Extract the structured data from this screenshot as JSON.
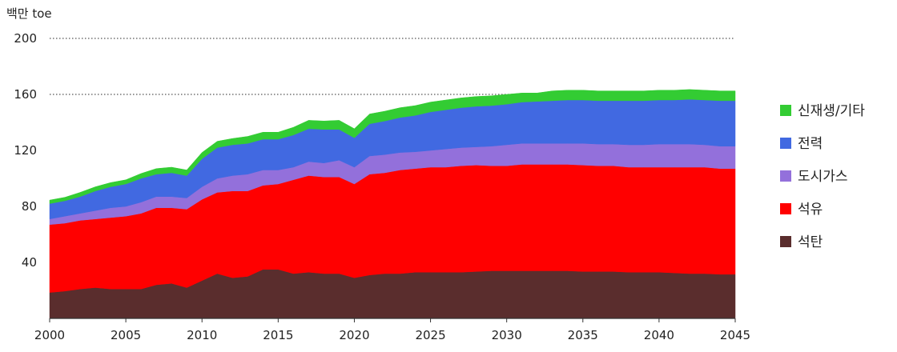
{
  "chart_data": {
    "type": "area",
    "stacked": true,
    "unit_label": "백만 toe",
    "x": [
      2000,
      2001,
      2002,
      2003,
      2004,
      2005,
      2006,
      2007,
      2008,
      2009,
      2010,
      2011,
      2012,
      2013,
      2014,
      2015,
      2016,
      2017,
      2018,
      2019,
      2020,
      2021,
      2022,
      2023,
      2024,
      2025,
      2026,
      2027,
      2028,
      2029,
      2030,
      2031,
      2032,
      2033,
      2034,
      2035,
      2036,
      2037,
      2038,
      2039,
      2040,
      2041,
      2042,
      2043,
      2044,
      2045
    ],
    "x_ticks": [
      "2000",
      "2005",
      "2010",
      "2015",
      "2020",
      "2025",
      "2030",
      "2035",
      "2040",
      "2045"
    ],
    "y_ticks": [
      "40",
      "80",
      "120",
      "160",
      "200"
    ],
    "ylim": [
      0,
      200
    ],
    "xlim": [
      2000,
      2045
    ],
    "gridlines": [
      160,
      200
    ],
    "legend_position": "right",
    "series": [
      {
        "name": "석탄",
        "color": "#5a2d2d",
        "values": [
          18.5,
          19.5,
          21,
          22,
          21,
          21,
          21,
          24,
          25,
          22,
          27,
          32,
          29,
          30,
          35,
          35,
          32,
          33,
          32,
          32,
          29,
          31,
          32,
          32,
          33,
          33,
          33,
          33,
          33.5,
          34,
          34,
          34,
          34,
          34,
          34,
          33.5,
          33.5,
          33.5,
          33,
          33,
          33,
          32.5,
          32,
          32,
          31.5,
          31.5
        ]
      },
      {
        "name": "석유",
        "color": "#ff0000",
        "values": [
          48.5,
          48.5,
          49,
          49,
          51,
          52,
          54,
          55,
          54,
          56,
          58,
          58,
          62,
          61,
          60,
          61,
          67,
          69,
          69,
          69,
          67,
          72,
          72,
          74,
          74,
          75,
          75,
          76,
          76,
          75,
          75,
          76,
          76,
          76,
          76,
          76,
          75.5,
          75.5,
          75,
          75,
          75,
          75.5,
          76,
          76,
          75.5,
          75.5
        ]
      },
      {
        "name": "도시가스",
        "color": "#9370db",
        "values": [
          4,
          5,
          5,
          6,
          7,
          7,
          8,
          8,
          8,
          8,
          9,
          10,
          11,
          12,
          11,
          10,
          9,
          10,
          10,
          12,
          12,
          13,
          13,
          12.5,
          12,
          12,
          13,
          13,
          13,
          14,
          15,
          15,
          15,
          15,
          15,
          15.5,
          15.5,
          15.5,
          16,
          16,
          16.5,
          16.5,
          16.5,
          16,
          16,
          16
        ]
      },
      {
        "name": "전력",
        "color": "#4169e1",
        "values": [
          11,
          11,
          12,
          14,
          15,
          16,
          17,
          16,
          17,
          16,
          20,
          22,
          22,
          22,
          22,
          22,
          23,
          23.5,
          24,
          22,
          21,
          23,
          24,
          25,
          26,
          27.5,
          28,
          28.5,
          29,
          29,
          29,
          29.5,
          30,
          30.5,
          31,
          31,
          31,
          31,
          31.5,
          31.5,
          31.5,
          31.5,
          32,
          32,
          32.5,
          32.5
        ]
      },
      {
        "name": "신재생/기타",
        "color": "#33cc33",
        "values": [
          2.5,
          2.5,
          3,
          3,
          3,
          3,
          3.5,
          4,
          4,
          4,
          4.5,
          4.5,
          4.5,
          5,
          5,
          5,
          5.5,
          6,
          6,
          6.5,
          6.5,
          7,
          7,
          7,
          7,
          7,
          7,
          7,
          7,
          7,
          7,
          6.5,
          6,
          7,
          7,
          7,
          7,
          7,
          7,
          7,
          7,
          7,
          7,
          7,
          7,
          7
        ]
      }
    ]
  }
}
